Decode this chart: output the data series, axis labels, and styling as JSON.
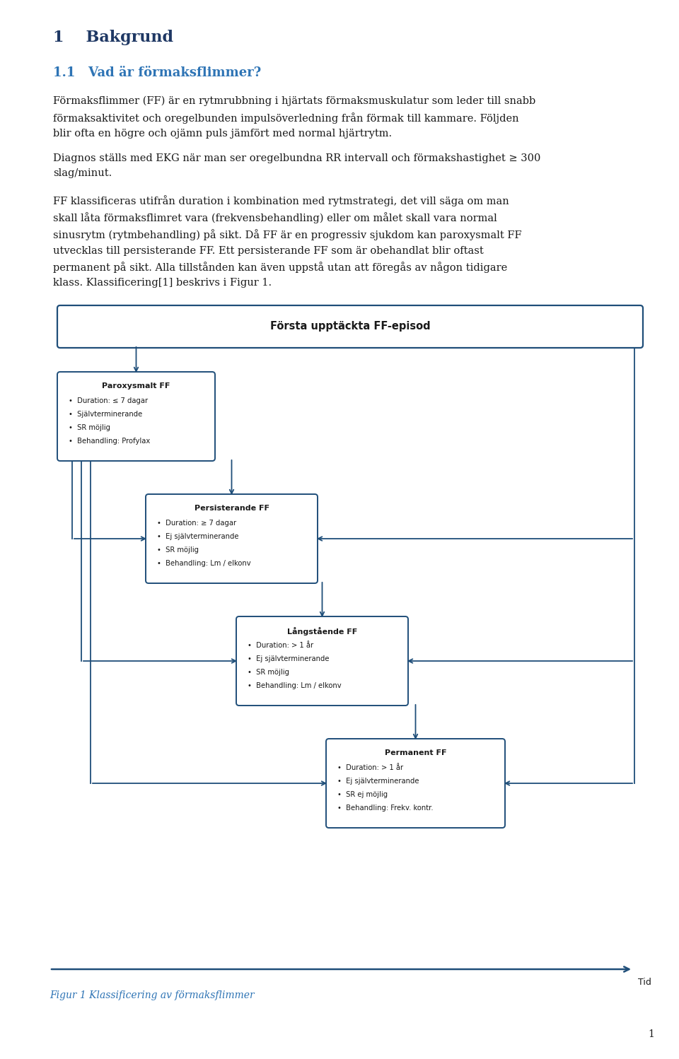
{
  "page_width": 9.6,
  "page_height": 14.98,
  "background_color": "#ffffff",
  "text_color": "#1a1a1a",
  "heading1_color": "#1F3864",
  "heading2_color": "#2E74B5",
  "box_color": "#1F4E79",
  "italic_color": "#2E74B5",
  "heading1": "1    Bakgrund",
  "heading2": "1.1   Vad är förmaksflimmer?",
  "para1": "Förmaksflimmer (FF) är en rytmrubbning i hjärtats förmaksmuskulatur som leder till snabb förmaksaktivitet och oregelbunden impulsöverledning från förmak till kammare. Följden blir ofta en högre och ojämn puls jämfört med normal hjärtrytm.",
  "para2": "Diagnos ställs med EKG när man ser oregelbundna RR intervall och förmakshastighet ≥ 300 slag/minut.",
  "para3": "FF klassificeras utifrån duration i kombination med rytmstrategi, det vill säga om man skall låta förmaksflimret vara (frekvensbehandling) eller om målet skall vara normal sinusrytm (rytmbehandling) på sikt. Då FF är en progressiv sjukdom kan paroxysmalt FF utvecklas till persisterande FF. Ett persisterande FF som är obehandlat blir oftast permanent på sikt. Alla tillstånden kan även uppstå utan att föregås av någon tidigare klass. Klassificering[1] beskrivs i Figur 1.",
  "figur_caption": "Figur 1 Klassificering av förmaksflimmer",
  "box0_title": "Första upptäckta FF-episod",
  "box1_title": "Paroxysmalt FF",
  "box1_bullets": [
    "Duration: ≤ 7 dagar",
    "Självterminerande",
    "SR möjlig",
    "Behandling: Profylax"
  ],
  "box2_title": "Persisterande FF",
  "box2_bullets": [
    "Duration: ≥ 7 dagar",
    "Ej självterminerande",
    "SR möjlig",
    "Behandling: Lm / elkonv"
  ],
  "box3_title": "Långstående FF",
  "box3_bullets": [
    "Duration: > 1 år",
    "Ej självterminerande",
    "SR möjlig",
    "Behandling: Lm / elkonv"
  ],
  "box4_title": "Permanent FF",
  "box4_bullets": [
    "Duration: > 1 år",
    "Ej självterminerande",
    "SR ej möjlig",
    "Behandling: Frekv. kontr."
  ],
  "tid_label": "Tid",
  "page_number": "1"
}
